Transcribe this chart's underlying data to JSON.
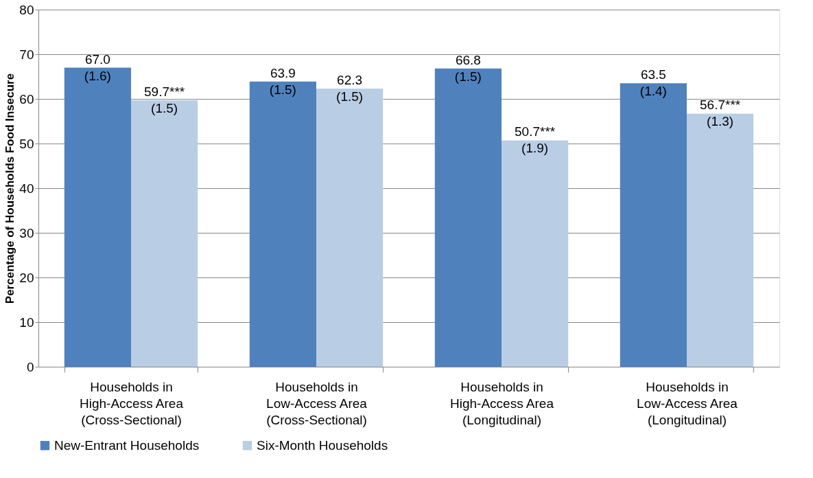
{
  "chart_data": {
    "type": "bar",
    "ylabel": "Percentage of Households Food Insecure",
    "categories": [
      "Households in\nHigh-Access Area\n(Cross-Sectional)",
      "Households in\nLow-Access Area\n(Cross-Sectional)",
      "Households in\nHigh-Access Area\n(Longitudinal)",
      "Households in\nLow-Access Area\n(Longitudinal)"
    ],
    "series": [
      {
        "name": "New-Entrant Households",
        "color": "#4f81bd",
        "values": [
          67.0,
          63.9,
          66.8,
          63.5
        ],
        "value_labels": [
          "67.0\n(1.6)",
          "63.9\n(1.5)",
          "66.8\n(1.5)",
          "63.5\n(1.4)"
        ]
      },
      {
        "name": "Six-Month Households",
        "color": "#b9cde5",
        "values": [
          59.7,
          62.3,
          50.7,
          56.7
        ],
        "value_labels": [
          "59.7***\n(1.5)",
          "62.3\n(1.5)",
          "50.7***\n(1.9)",
          "56.7***\n(1.3)"
        ]
      }
    ],
    "ylim": [
      0,
      80
    ],
    "yticks": [
      0,
      10,
      20,
      30,
      40,
      50,
      60,
      70,
      80
    ],
    "grid": "y",
    "legend": "bottom"
  }
}
